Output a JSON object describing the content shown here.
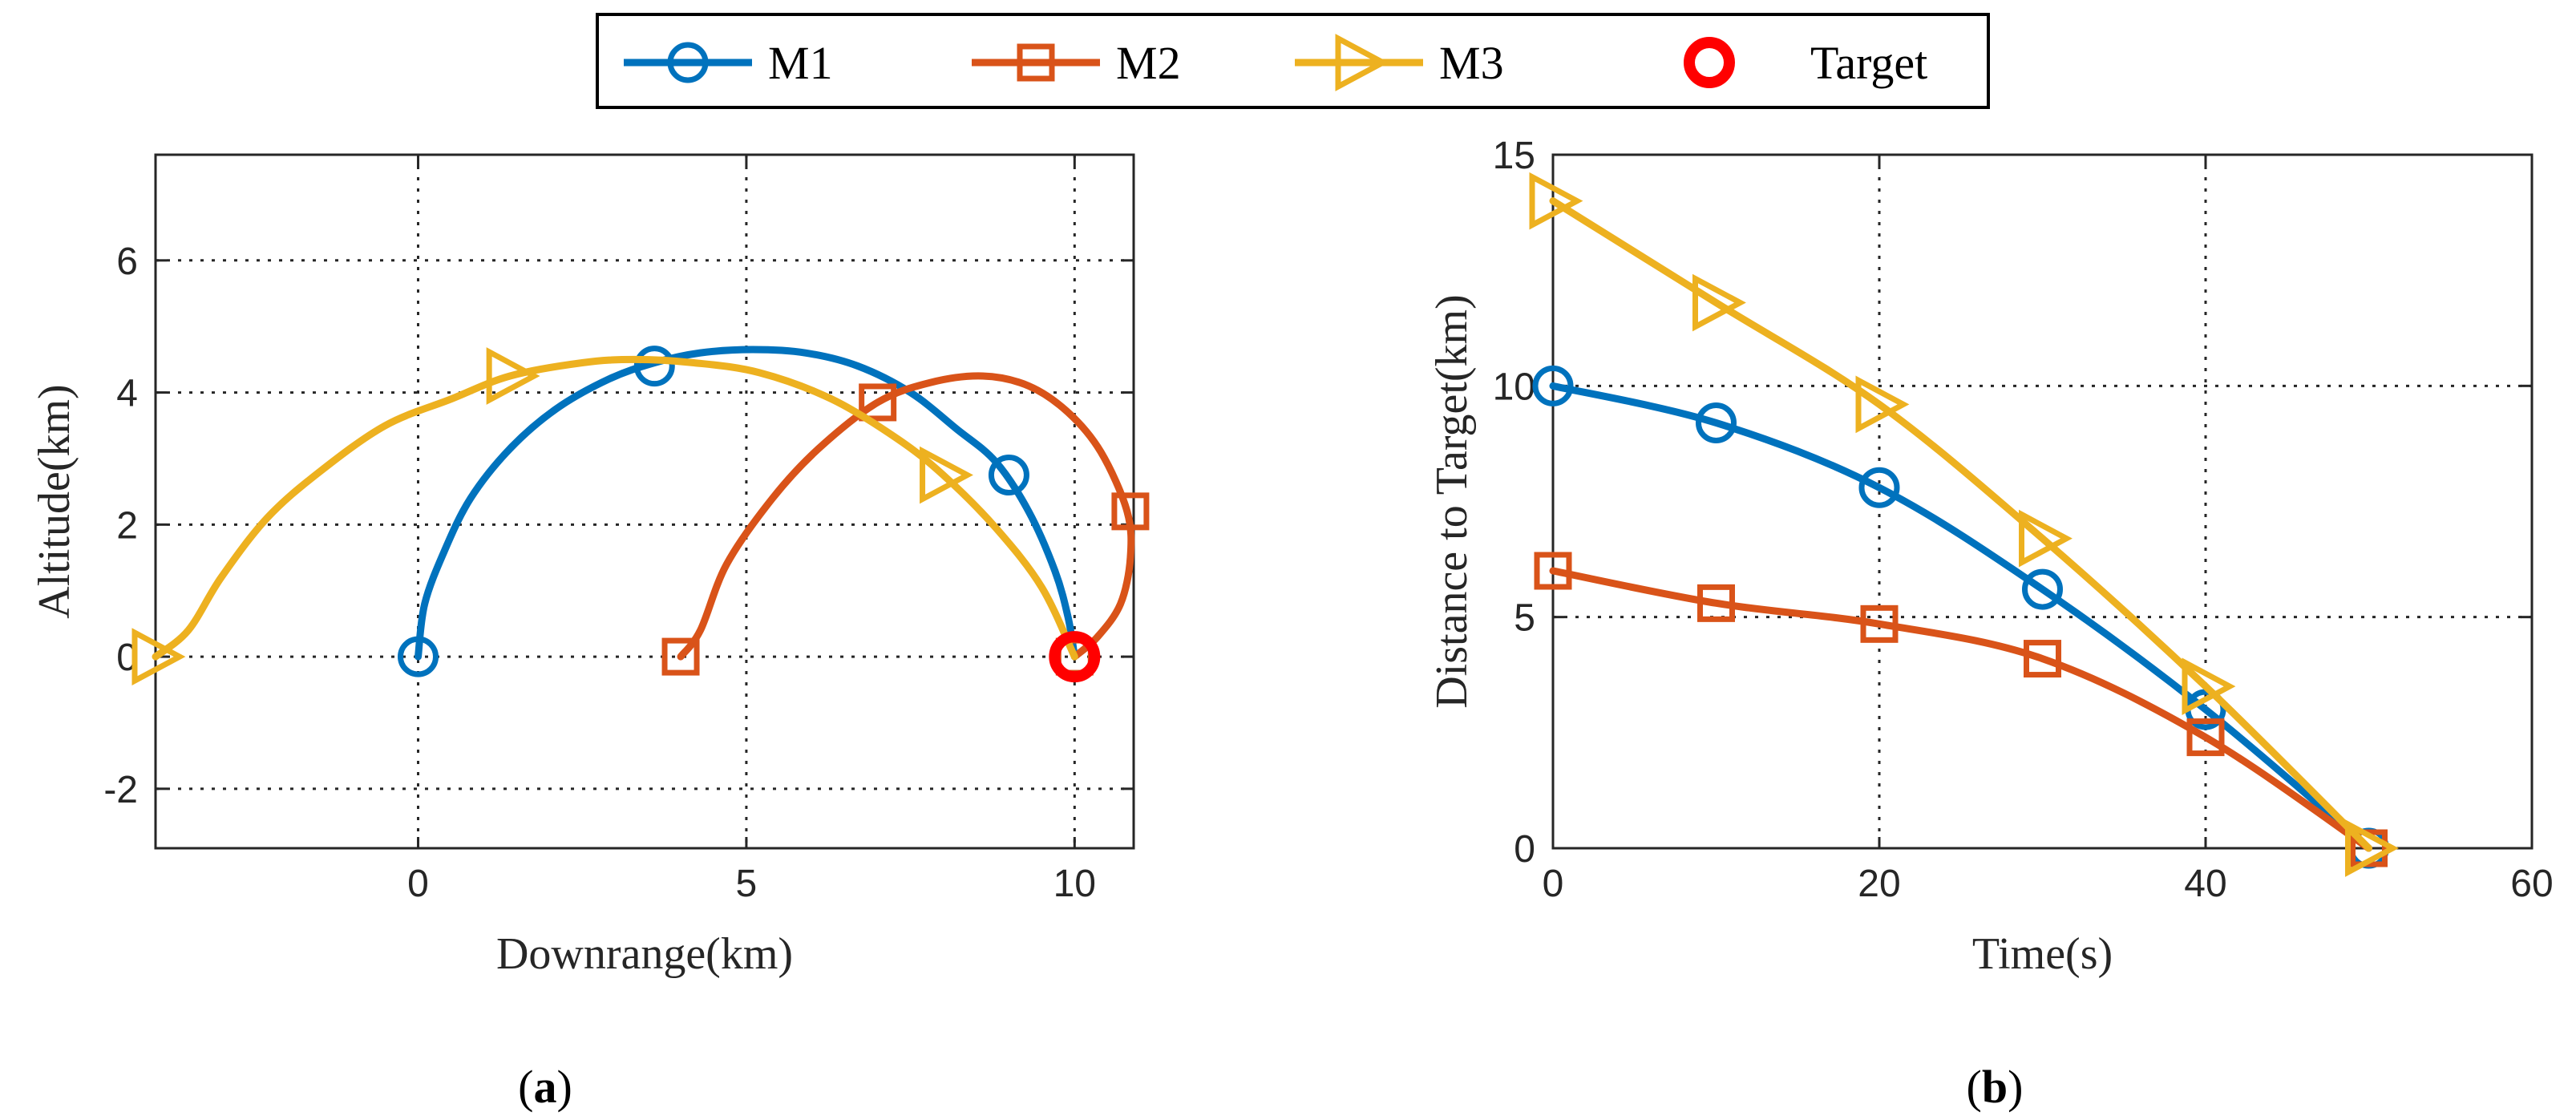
{
  "legend": {
    "entries": [
      {
        "name": "M1",
        "color": "#0072BD",
        "marker": "circle"
      },
      {
        "name": "M2",
        "color": "#D95319",
        "marker": "square"
      },
      {
        "name": "M3",
        "color": "#EDB120",
        "marker": "triangle-right"
      },
      {
        "name": "Target",
        "color": "#FF0000",
        "marker": "target-circle"
      }
    ]
  },
  "chart_data": [
    {
      "id": "a",
      "type": "line",
      "panel_label": "a",
      "xlabel": "Downrange(km)",
      "ylabel": "Altitude(km)",
      "xlim": [
        -4,
        10.9
      ],
      "ylim": [
        -2.9,
        7.6
      ],
      "xticks": [
        0,
        5,
        10
      ],
      "yticks": [
        -2,
        0,
        2,
        4,
        6
      ],
      "grid": true,
      "series": [
        {
          "name": "M1",
          "color": "#0072BD",
          "marker": "circle",
          "curve": [
            [
              0,
              0
            ],
            [
              0.1,
              0.8
            ],
            [
              0.4,
              1.6
            ],
            [
              0.8,
              2.4
            ],
            [
              1.4,
              3.15
            ],
            [
              2.1,
              3.75
            ],
            [
              2.9,
              4.2
            ],
            [
              3.6,
              4.45
            ],
            [
              4.3,
              4.6
            ],
            [
              5.1,
              4.65
            ],
            [
              5.9,
              4.6
            ],
            [
              6.7,
              4.4
            ],
            [
              7.5,
              4.0
            ],
            [
              8.2,
              3.45
            ],
            [
              8.8,
              2.95
            ],
            [
              9.3,
              2.2
            ],
            [
              9.7,
              1.3
            ],
            [
              9.9,
              0.6
            ],
            [
              10,
              0
            ]
          ],
          "markers": [
            [
              0,
              0
            ],
            [
              3.6,
              4.4
            ],
            [
              9,
              2.75
            ]
          ]
        },
        {
          "name": "M2",
          "color": "#D95319",
          "marker": "square",
          "curve": [
            [
              4,
              0
            ],
            [
              4.3,
              0.4
            ],
            [
              4.7,
              1.4
            ],
            [
              5.4,
              2.4
            ],
            [
              6.1,
              3.15
            ],
            [
              7,
              3.85
            ],
            [
              7.8,
              4.15
            ],
            [
              8.6,
              4.25
            ],
            [
              9.3,
              4.1
            ],
            [
              9.9,
              3.7
            ],
            [
              10.4,
              3.1
            ],
            [
              10.8,
              2.2
            ],
            [
              10.85,
              1.5
            ],
            [
              10.7,
              0.8
            ],
            [
              10.35,
              0.3
            ],
            [
              10,
              0
            ]
          ],
          "markers": [
            [
              4,
              0
            ],
            [
              7,
              3.85
            ],
            [
              10.85,
              2.2
            ],
            [
              10,
              0
            ]
          ]
        },
        {
          "name": "M3",
          "color": "#EDB120",
          "marker": "triangle-right",
          "curve": [
            [
              -4,
              0
            ],
            [
              -3.5,
              0.4
            ],
            [
              -3,
              1.2
            ],
            [
              -2.3,
              2.1
            ],
            [
              -1.5,
              2.8
            ],
            [
              -0.5,
              3.5
            ],
            [
              0.5,
              3.9
            ],
            [
              1.4,
              4.25
            ],
            [
              2.5,
              4.45
            ],
            [
              3.3,
              4.5
            ],
            [
              4.2,
              4.45
            ],
            [
              5.2,
              4.3
            ],
            [
              6.3,
              3.9
            ],
            [
              7.3,
              3.3
            ],
            [
              8,
              2.75
            ],
            [
              8.8,
              1.95
            ],
            [
              9.5,
              1.05
            ],
            [
              10,
              0
            ]
          ],
          "markers": [
            [
              -4,
              0
            ],
            [
              1.4,
              4.25
            ],
            [
              8,
              2.75
            ]
          ]
        }
      ],
      "target": {
        "name": "Target",
        "color": "#FF0000",
        "point": [
          10,
          0
        ]
      }
    },
    {
      "id": "b",
      "type": "line",
      "panel_label": "b",
      "xlabel": "Time(s)",
      "ylabel": "Distance to Target(km)",
      "xlim": [
        0,
        60
      ],
      "ylim": [
        0,
        15
      ],
      "xticks": [
        0,
        20,
        40,
        60
      ],
      "yticks": [
        0,
        5,
        10,
        15
      ],
      "grid": true,
      "series": [
        {
          "name": "M1",
          "color": "#0072BD",
          "marker": "circle",
          "x": [
            0,
            10,
            20,
            30,
            40,
            50
          ],
          "values": [
            10,
            9.2,
            7.8,
            5.6,
            3.0,
            0
          ]
        },
        {
          "name": "M2",
          "color": "#D95319",
          "marker": "square",
          "x": [
            0,
            10,
            20,
            30,
            40,
            50
          ],
          "values": [
            6,
            5.3,
            4.85,
            4.1,
            2.4,
            0
          ]
        },
        {
          "name": "M3",
          "color": "#EDB120",
          "marker": "triangle-right",
          "x": [
            0,
            10,
            20,
            30,
            40,
            50
          ],
          "values": [
            14,
            11.8,
            9.6,
            6.7,
            3.5,
            0
          ]
        }
      ]
    }
  ]
}
